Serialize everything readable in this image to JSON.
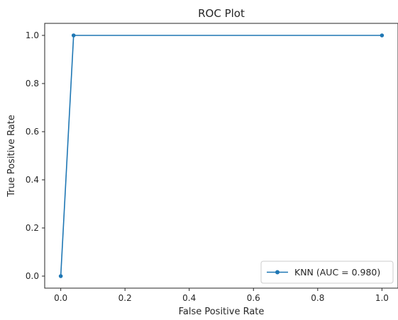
{
  "chart_data": {
    "type": "line",
    "title": "ROC Plot",
    "xlabel": "False Positive Rate",
    "ylabel": "True Positive Rate",
    "xlim": [
      -0.05,
      1.05
    ],
    "ylim": [
      -0.05,
      1.05
    ],
    "xticks": [
      0.0,
      0.2,
      0.4,
      0.6,
      0.8,
      1.0
    ],
    "xtick_labels": [
      "0.0",
      "0.2",
      "0.4",
      "0.6",
      "0.8",
      "1.0"
    ],
    "yticks": [
      0.0,
      0.2,
      0.4,
      0.6,
      0.8,
      1.0
    ],
    "ytick_labels": [
      "0.0",
      "0.2",
      "0.4",
      "0.6",
      "0.8",
      "1.0"
    ],
    "grid": false,
    "legend_position": "bottom-right",
    "series": [
      {
        "name": "KNN (AUC = 0.980)",
        "color": "#1f77b4",
        "marker": "dot",
        "x": [
          0.0,
          0.04,
          1.0
        ],
        "y": [
          0.0,
          1.0,
          1.0
        ]
      }
    ]
  }
}
